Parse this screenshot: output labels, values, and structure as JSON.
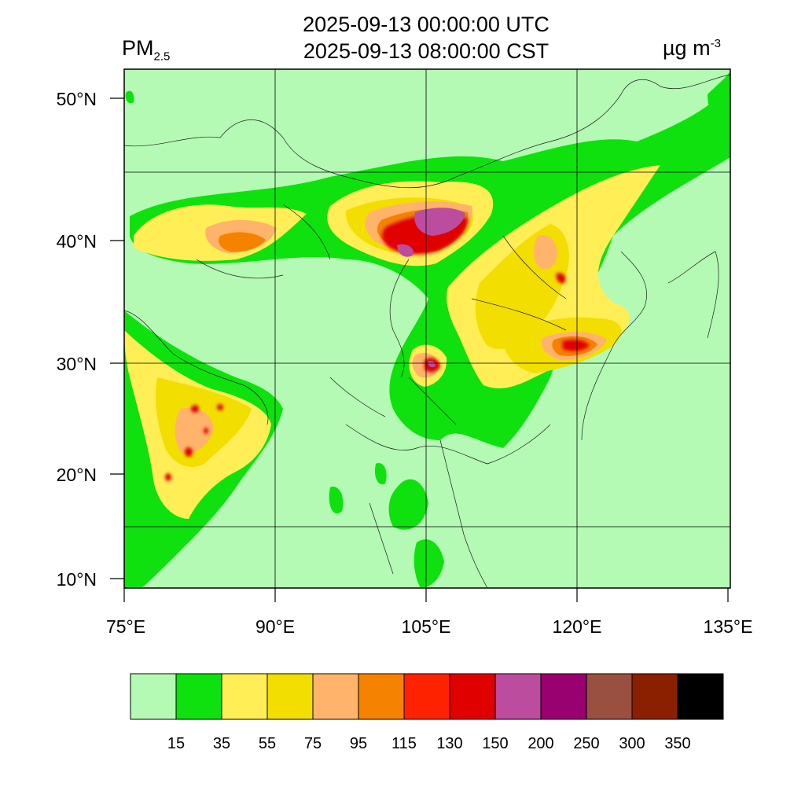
{
  "header": {
    "title_utc": "2025-09-13 00:00:00 UTC",
    "title_cst": "2025-09-13 08:00:00 CST",
    "variable_main": "PM",
    "variable_sub": "2.5",
    "units_main": "µg m",
    "units_sup": "-3"
  },
  "map": {
    "lat_labels": [
      "50°N",
      "40°N",
      "30°N",
      "20°N",
      "10°N"
    ],
    "lon_labels": [
      "75°E",
      "90°E",
      "105°E",
      "120°E",
      "135°E"
    ]
  },
  "legend": {
    "colors": [
      "#b4fab4",
      "#0ee10e",
      "#ffee55",
      "#f2de00",
      "#ffb36b",
      "#f58200",
      "#ff2200",
      "#e00000",
      "#bb4c9e",
      "#990070",
      "#9a5040",
      "#8b2000",
      "#000000"
    ],
    "labels": [
      "15",
      "35",
      "55",
      "75",
      "95",
      "115",
      "130",
      "150",
      "200",
      "250",
      "300",
      "350"
    ]
  }
}
